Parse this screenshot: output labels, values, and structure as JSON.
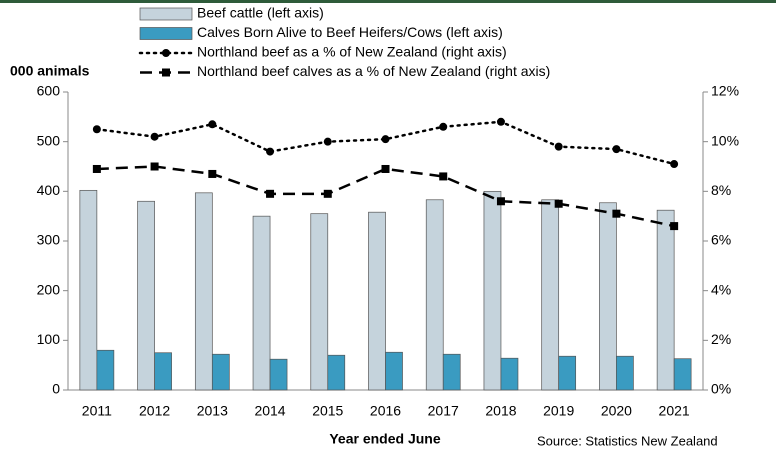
{
  "chart_data": {
    "type": "bar",
    "y_axis_label": "000 animals",
    "x_axis_label": "Year ended June",
    "source": "Source: Statistics New Zealand",
    "categories": [
      "2011",
      "2012",
      "2013",
      "2014",
      "2015",
      "2016",
      "2017",
      "2018",
      "2019",
      "2020",
      "2021"
    ],
    "series": [
      {
        "name": "Beef cattle (left axis)",
        "kind": "bar",
        "color": "#c5d3dc",
        "values": [
          402,
          380,
          397,
          350,
          355,
          358,
          383,
          400,
          383,
          377,
          362
        ]
      },
      {
        "name": "Calves Born Alive to Beef Heifers/Cows (left axis)",
        "kind": "bar",
        "color": "#3a9bc1",
        "values": [
          80,
          75,
          72,
          62,
          70,
          76,
          72,
          64,
          68,
          68,
          63
        ]
      },
      {
        "name": "Northland beef as a % of New Zealand (right axis)",
        "kind": "line",
        "axis": "y2",
        "color": "#000000",
        "line_style": "dotted",
        "marker": "circle",
        "values": [
          10.5,
          10.2,
          10.7,
          9.6,
          10.0,
          10.1,
          10.6,
          10.8,
          9.8,
          9.7,
          9.1
        ]
      },
      {
        "name": "Northland beef calves as a % of New Zealand (right axis)",
        "kind": "line",
        "axis": "y2",
        "color": "#000000",
        "line_style": "dashed",
        "marker": "square",
        "values": [
          8.9,
          9.0,
          8.7,
          7.9,
          7.9,
          8.9,
          8.6,
          7.6,
          7.5,
          7.1,
          6.6
        ]
      }
    ],
    "ylim": [
      0,
      600
    ],
    "yticks": [
      0,
      100,
      200,
      300,
      400,
      500,
      600
    ],
    "y2lim": [
      0,
      12
    ],
    "y2ticks": [
      {
        "value": 0,
        "label": "0%"
      },
      {
        "value": 2,
        "label": "2%"
      },
      {
        "value": 4,
        "label": "4%"
      },
      {
        "value": 6,
        "label": "6%"
      },
      {
        "value": 8,
        "label": "8%"
      },
      {
        "value": 10,
        "label": "10%"
      },
      {
        "value": 12,
        "label": "12%"
      }
    ],
    "legend": "top",
    "grid": false
  }
}
